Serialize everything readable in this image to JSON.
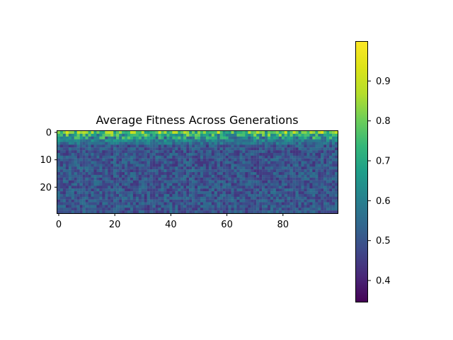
{
  "chart_data": {
    "type": "heatmap",
    "title": "Average Fitness Across Generations",
    "xlabel": "",
    "ylabel": "",
    "rows": 30,
    "cols": 100,
    "x_ticks": [
      0,
      20,
      40,
      60,
      80
    ],
    "y_ticks": [
      0,
      10,
      20
    ],
    "colormap": "viridis",
    "vmin": 0.345,
    "vmax": 1.0,
    "colorbar_ticks": [
      0.4,
      0.5,
      0.6,
      0.7,
      0.8,
      0.9
    ],
    "value_profile": {
      "row_0": 0.78,
      "row_1": 0.7,
      "row_2": 0.64,
      "row_3": 0.6,
      "row_4": 0.56,
      "row_5_plus": 0.5,
      "noise_range": 0.14
    },
    "grid": false,
    "legend": "none"
  }
}
